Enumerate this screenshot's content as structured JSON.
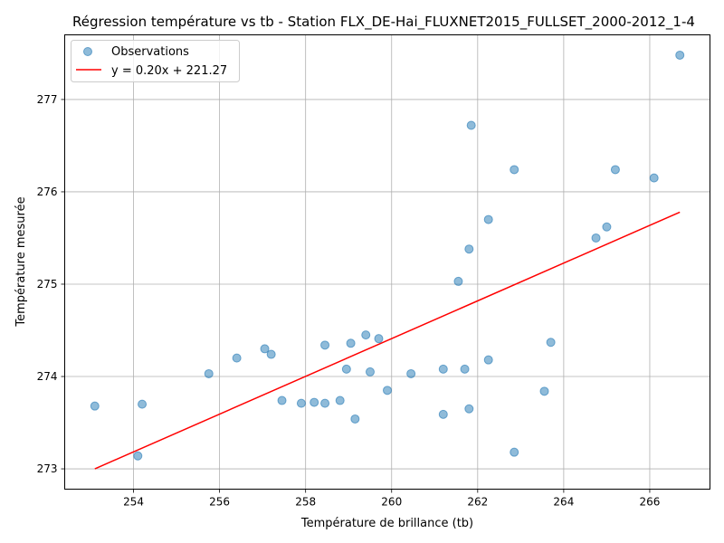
{
  "chart_data": {
    "type": "scatter",
    "title": "Régression température vs tb - Station FLX_DE-Hai_FLUXNET2015_FULLSET_2000-2012_1-4",
    "xlabel": "Température de brillance (tb)",
    "ylabel": "Température mesurée",
    "xlim": [
      252.4,
      267.4
    ],
    "ylim": [
      272.78,
      277.7
    ],
    "xticks": [
      254,
      256,
      258,
      260,
      262,
      264,
      266
    ],
    "yticks": [
      273,
      274,
      275,
      276,
      277
    ],
    "grid": true,
    "legend_position": "top-left",
    "colors": {
      "points": "#1f77b4",
      "line": "#ff0000"
    },
    "series": [
      {
        "name": "Observations",
        "kind": "scatter",
        "points": [
          [
            253.1,
            273.68
          ],
          [
            254.1,
            273.14
          ],
          [
            254.2,
            273.7
          ],
          [
            255.75,
            274.03
          ],
          [
            256.4,
            274.2
          ],
          [
            257.05,
            274.3
          ],
          [
            257.2,
            274.24
          ],
          [
            257.45,
            273.74
          ],
          [
            257.9,
            273.71
          ],
          [
            258.2,
            273.72
          ],
          [
            258.45,
            274.34
          ],
          [
            258.45,
            273.71
          ],
          [
            258.8,
            273.74
          ],
          [
            258.95,
            274.08
          ],
          [
            259.05,
            274.36
          ],
          [
            259.15,
            273.54
          ],
          [
            259.4,
            274.45
          ],
          [
            259.5,
            274.05
          ],
          [
            259.7,
            274.41
          ],
          [
            259.9,
            273.85
          ],
          [
            260.45,
            274.03
          ],
          [
            261.2,
            273.59
          ],
          [
            261.2,
            274.08
          ],
          [
            261.55,
            275.03
          ],
          [
            261.7,
            274.08
          ],
          [
            261.8,
            275.38
          ],
          [
            261.8,
            273.65
          ],
          [
            261.85,
            276.72
          ],
          [
            262.25,
            274.18
          ],
          [
            262.25,
            275.7
          ],
          [
            262.85,
            273.18
          ],
          [
            262.85,
            276.24
          ],
          [
            263.55,
            273.84
          ],
          [
            263.7,
            274.37
          ],
          [
            264.75,
            275.5
          ],
          [
            265.0,
            275.62
          ],
          [
            265.2,
            276.24
          ],
          [
            266.1,
            276.15
          ],
          [
            266.7,
            277.48
          ]
        ]
      },
      {
        "name": "y = 0.20x + 221.27",
        "kind": "line",
        "points": [
          [
            253.1,
            273.0
          ],
          [
            266.7,
            275.78
          ]
        ]
      }
    ]
  }
}
